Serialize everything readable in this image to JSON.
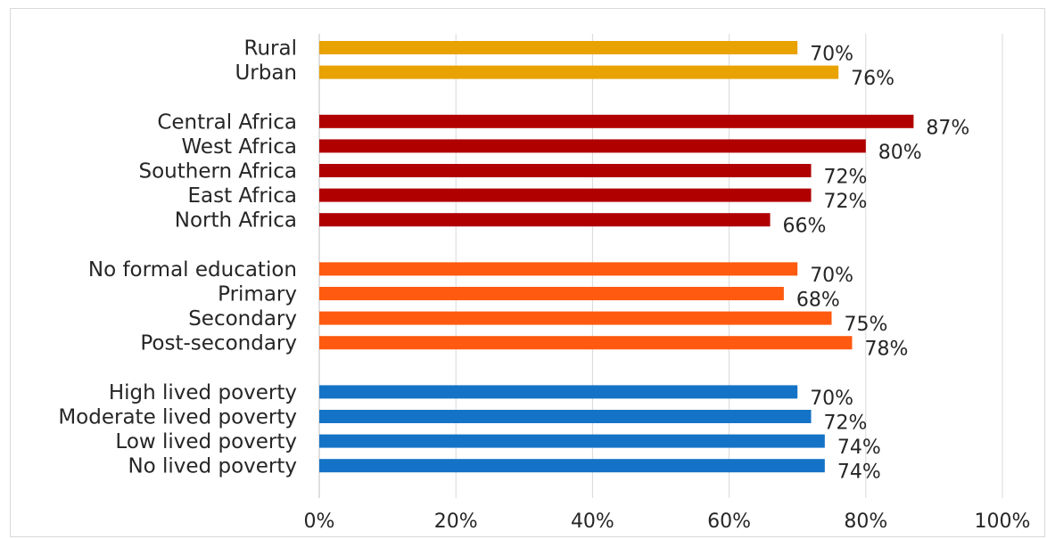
{
  "chart_data": {
    "type": "bar",
    "orientation": "horizontal",
    "title": "",
    "xlabel": "",
    "ylabel": "",
    "xlim": [
      0,
      100
    ],
    "x_ticks": [
      "0%",
      "20%",
      "40%",
      "60%",
      "80%",
      "100%"
    ],
    "grid": true,
    "groups": [
      {
        "color": "#E8A202",
        "bars": [
          {
            "label": "Rural",
            "value": 70,
            "value_label": "70%"
          },
          {
            "label": "Urban",
            "value": 76,
            "value_label": "76%"
          }
        ]
      },
      {
        "color": "#B00000",
        "bars": [
          {
            "label": "Central Africa",
            "value": 87,
            "value_label": "87%"
          },
          {
            "label": "West Africa",
            "value": 80,
            "value_label": "80%"
          },
          {
            "label": "Southern Africa",
            "value": 72,
            "value_label": "72%"
          },
          {
            "label": "East Africa",
            "value": 72,
            "value_label": "72%"
          },
          {
            "label": "North Africa",
            "value": 66,
            "value_label": "66%"
          }
        ]
      },
      {
        "color": "#FF5A0F",
        "bars": [
          {
            "label": "No formal education",
            "value": 70,
            "value_label": "70%"
          },
          {
            "label": "Primary",
            "value": 68,
            "value_label": "68%"
          },
          {
            "label": "Secondary",
            "value": 75,
            "value_label": "75%"
          },
          {
            "label": "Post-secondary",
            "value": 78,
            "value_label": "78%"
          }
        ]
      },
      {
        "color": "#1473C6",
        "bars": [
          {
            "label": "High lived poverty",
            "value": 70,
            "value_label": "70%"
          },
          {
            "label": "Moderate lived poverty",
            "value": 72,
            "value_label": "72%"
          },
          {
            "label": "Low lived poverty",
            "value": 74,
            "value_label": "74%"
          },
          {
            "label": "No lived poverty",
            "value": 74,
            "value_label": "74%"
          }
        ]
      }
    ]
  }
}
